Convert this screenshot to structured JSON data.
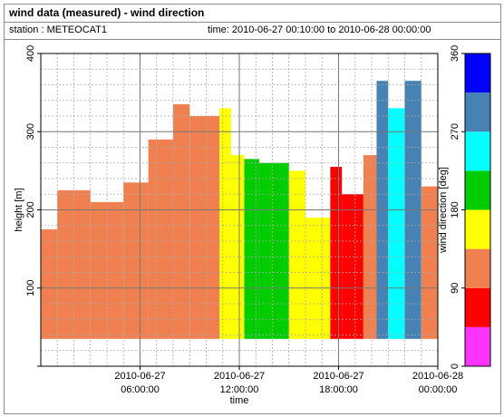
{
  "header": {
    "title": "wind data (measured) - wind direction",
    "station": "station : METEOCAT1",
    "time_range": "time: 2010-06-27 00:10:00 to 2010-06-28 00:00:00"
  },
  "chart_data": {
    "type": "heatmap",
    "title": "wind data (measured) - wind direction",
    "xlabel": "time",
    "ylabel": "height [m]",
    "x_range_hours": [
      0,
      24
    ],
    "ylim": [
      0,
      400
    ],
    "y_ticks": [
      0,
      100,
      200,
      300,
      400
    ],
    "y_tick_labels": [
      "",
      "100",
      "200",
      "300",
      "400"
    ],
    "x_ticks": [
      {
        "hour": 6,
        "line1": "2010-06-27",
        "line2": "06:00:00"
      },
      {
        "hour": 12,
        "line1": "2010-06-27",
        "line2": "12:00:00"
      },
      {
        "hour": 18,
        "line1": "2010-06-27",
        "line2": "18:00:00"
      },
      {
        "hour": 24,
        "line1": "2010-06-28",
        "line2": "00:00:00"
      }
    ],
    "grid": true,
    "colorbar": {
      "label": "wind direction [deg]",
      "range": [
        0,
        360
      ],
      "ticks": [
        0,
        90,
        180,
        270,
        360
      ],
      "tick_labels": [
        "0",
        "90",
        "180",
        "270",
        "360"
      ],
      "bands": [
        {
          "from": 0,
          "to": 45,
          "color": "#ff33ff"
        },
        {
          "from": 45,
          "to": 90,
          "color": "#ff0000"
        },
        {
          "from": 90,
          "to": 135,
          "color": "#f08050"
        },
        {
          "from": 135,
          "to": 180,
          "color": "#ffff00"
        },
        {
          "from": 180,
          "to": 225,
          "color": "#00cc00"
        },
        {
          "from": 225,
          "to": 270,
          "color": "#00ffff"
        },
        {
          "from": 270,
          "to": 315,
          "color": "#4682b4"
        },
        {
          "from": 315,
          "to": 360,
          "color": "#0000ff"
        }
      ]
    },
    "data_bottom_m": 35,
    "data": [
      {
        "from_h": 0.0,
        "to_h": 1.0,
        "top_m": 175,
        "dir": 110
      },
      {
        "from_h": 1.0,
        "to_h": 3.0,
        "top_m": 225,
        "dir": 110
      },
      {
        "from_h": 3.0,
        "to_h": 5.0,
        "top_m": 210,
        "dir": 110
      },
      {
        "from_h": 5.0,
        "to_h": 6.5,
        "top_m": 235,
        "dir": 110
      },
      {
        "from_h": 6.5,
        "to_h": 8.0,
        "top_m": 290,
        "dir": 120
      },
      {
        "from_h": 8.0,
        "to_h": 9.0,
        "top_m": 335,
        "dir": 130
      },
      {
        "from_h": 9.0,
        "to_h": 10.8,
        "top_m": 320,
        "dir": 105
      },
      {
        "from_h": 10.8,
        "to_h": 11.5,
        "top_m": 330,
        "dir": 150
      },
      {
        "from_h": 11.5,
        "to_h": 12.3,
        "top_m": 270,
        "dir": 170
      },
      {
        "from_h": 12.3,
        "to_h": 13.2,
        "top_m": 265,
        "dir": 200
      },
      {
        "from_h": 13.2,
        "to_h": 15.0,
        "top_m": 260,
        "dir": 195
      },
      {
        "from_h": 15.0,
        "to_h": 16.0,
        "top_m": 250,
        "dir": 165
      },
      {
        "from_h": 16.0,
        "to_h": 17.5,
        "top_m": 190,
        "dir": 160
      },
      {
        "from_h": 17.5,
        "to_h": 18.2,
        "top_m": 255,
        "dir": 70
      },
      {
        "from_h": 18.2,
        "to_h": 19.5,
        "top_m": 220,
        "dir": 70
      },
      {
        "from_h": 19.5,
        "to_h": 20.3,
        "top_m": 270,
        "dir": 120
      },
      {
        "from_h": 20.3,
        "to_h": 21.0,
        "top_m": 365,
        "dir": 300
      },
      {
        "from_h": 21.0,
        "to_h": 22.0,
        "top_m": 330,
        "dir": 260
      },
      {
        "from_h": 22.0,
        "to_h": 23.0,
        "top_m": 365,
        "dir": 290
      },
      {
        "from_h": 23.0,
        "to_h": 24.0,
        "top_m": 230,
        "dir": 115
      }
    ]
  }
}
